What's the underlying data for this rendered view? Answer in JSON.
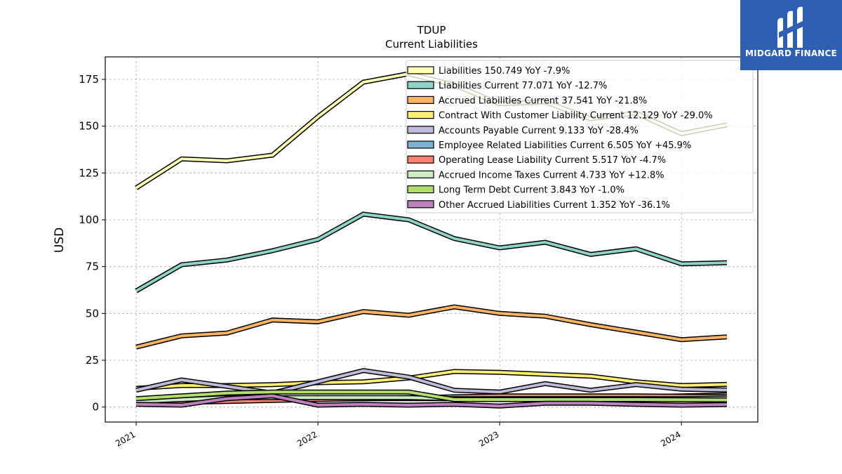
{
  "logo": {
    "text": "MIDGARD FINANCE",
    "bg_color": "#2f5fb0"
  },
  "chart_data": {
    "type": "line",
    "title": "TDUP",
    "subtitle": "Current  Liabilities",
    "xlabel": "",
    "ylabel": "USD",
    "xlim": [
      2020.83,
      2024.42
    ],
    "ylim": [
      -8,
      187
    ],
    "x_ticks": [
      {
        "value": 2021,
        "label": "2021"
      },
      {
        "value": 2022,
        "label": "2022"
      },
      {
        "value": 2023,
        "label": "2023"
      },
      {
        "value": 2024,
        "label": "2024"
      }
    ],
    "y_ticks": [
      0,
      25,
      50,
      75,
      100,
      125,
      150,
      175
    ],
    "grid": true,
    "legend_position": "top-right",
    "x": [
      2021.0,
      2021.25,
      2021.5,
      2021.75,
      2022.0,
      2022.25,
      2022.5,
      2022.75,
      2023.0,
      2023.25,
      2023.5,
      2023.75,
      2024.0,
      2024.25
    ],
    "series": [
      {
        "name": "Liabilities",
        "legend": "Liabilities  150.749 YoY -7.9%",
        "color": "#ffffb3",
        "values": [
          117,
          132.5,
          131.5,
          134.5,
          155,
          173.5,
          178,
          172,
          162,
          163,
          154,
          157,
          146,
          150.7
        ]
      },
      {
        "name": "Liabilities Current",
        "legend": "Liabilities Current  77.071 YoY -12.7%",
        "color": "#8dd3c7",
        "values": [
          62,
          76,
          78.5,
          83.5,
          89.5,
          103,
          100,
          90,
          85,
          88,
          81.5,
          84.5,
          76.5,
          77.1
        ]
      },
      {
        "name": "Accrued Liabilities Current",
        "legend": "Accrued Liabilities Current  37.541 YoY -21.8%",
        "color": "#fdb462",
        "values": [
          32,
          38,
          39.5,
          46.5,
          45.5,
          51,
          49,
          53.5,
          50,
          48.5,
          44,
          40,
          36,
          37.5
        ]
      },
      {
        "name": "Contract With Customer Liability Current",
        "legend": "Contract With Customer Liability Current  12.129 YoY -29.0%",
        "color": "#ffed6f",
        "values": [
          10,
          11.5,
          11.5,
          12,
          13,
          13.5,
          15.5,
          19,
          18.5,
          17.5,
          16.5,
          13.5,
          11.5,
          12.1
        ]
      },
      {
        "name": "Accounts Payable Current",
        "legend": "Accounts Payable Current  9.133 YoY -28.4%",
        "color": "#bebada",
        "values": [
          9,
          14.5,
          11,
          7.5,
          13.5,
          19.5,
          16,
          9,
          8,
          12.5,
          9,
          12,
          9.5,
          9.1
        ]
      },
      {
        "name": "Employee Related Liabilities Current",
        "legend": "Employee Related Liabilities Current  6.505 YoY +45.9%",
        "color": "#80b1d3",
        "values": [
          3,
          3.5,
          3.5,
          4,
          4.5,
          4.5,
          4.5,
          4.5,
          4.5,
          5,
          5,
          5.5,
          6,
          6.5
        ]
      },
      {
        "name": "Operating Lease Liability Current",
        "legend": "Operating Lease Liability Current  5.517 YoY -4.7%",
        "color": "#fb8072",
        "values": [
          2,
          2.5,
          3,
          3.5,
          4,
          4.5,
          5,
          5.5,
          6,
          6,
          6,
          6,
          5.8,
          5.5
        ]
      },
      {
        "name": "Accrued Income Taxes Current",
        "legend": "Accrued Income Taxes Current  4.733 YoY +12.8%",
        "color": "#ccebc5",
        "values": [
          3,
          4,
          5,
          5,
          5,
          5,
          5,
          4.5,
          4.5,
          4.5,
          4.5,
          4.5,
          4.5,
          4.7
        ]
      },
      {
        "name": "Long Term Debt Current",
        "legend": "Long Term Debt Current  3.843 YoY -1.0%",
        "color": "#b3de69",
        "values": [
          4.5,
          6,
          7.5,
          8,
          8,
          8,
          8,
          4,
          4,
          4,
          4,
          4,
          3.9,
          3.8
        ]
      },
      {
        "name": "Other Accrued Liabilities Current",
        "legend": "Other Accrued Liabilities Current  1.352 YoY -36.1%",
        "color": "#bc80bd",
        "values": [
          1.5,
          1,
          4.5,
          6,
          1,
          1.5,
          1,
          1.5,
          0.5,
          2,
          2,
          1.5,
          1,
          1.35
        ]
      }
    ]
  }
}
